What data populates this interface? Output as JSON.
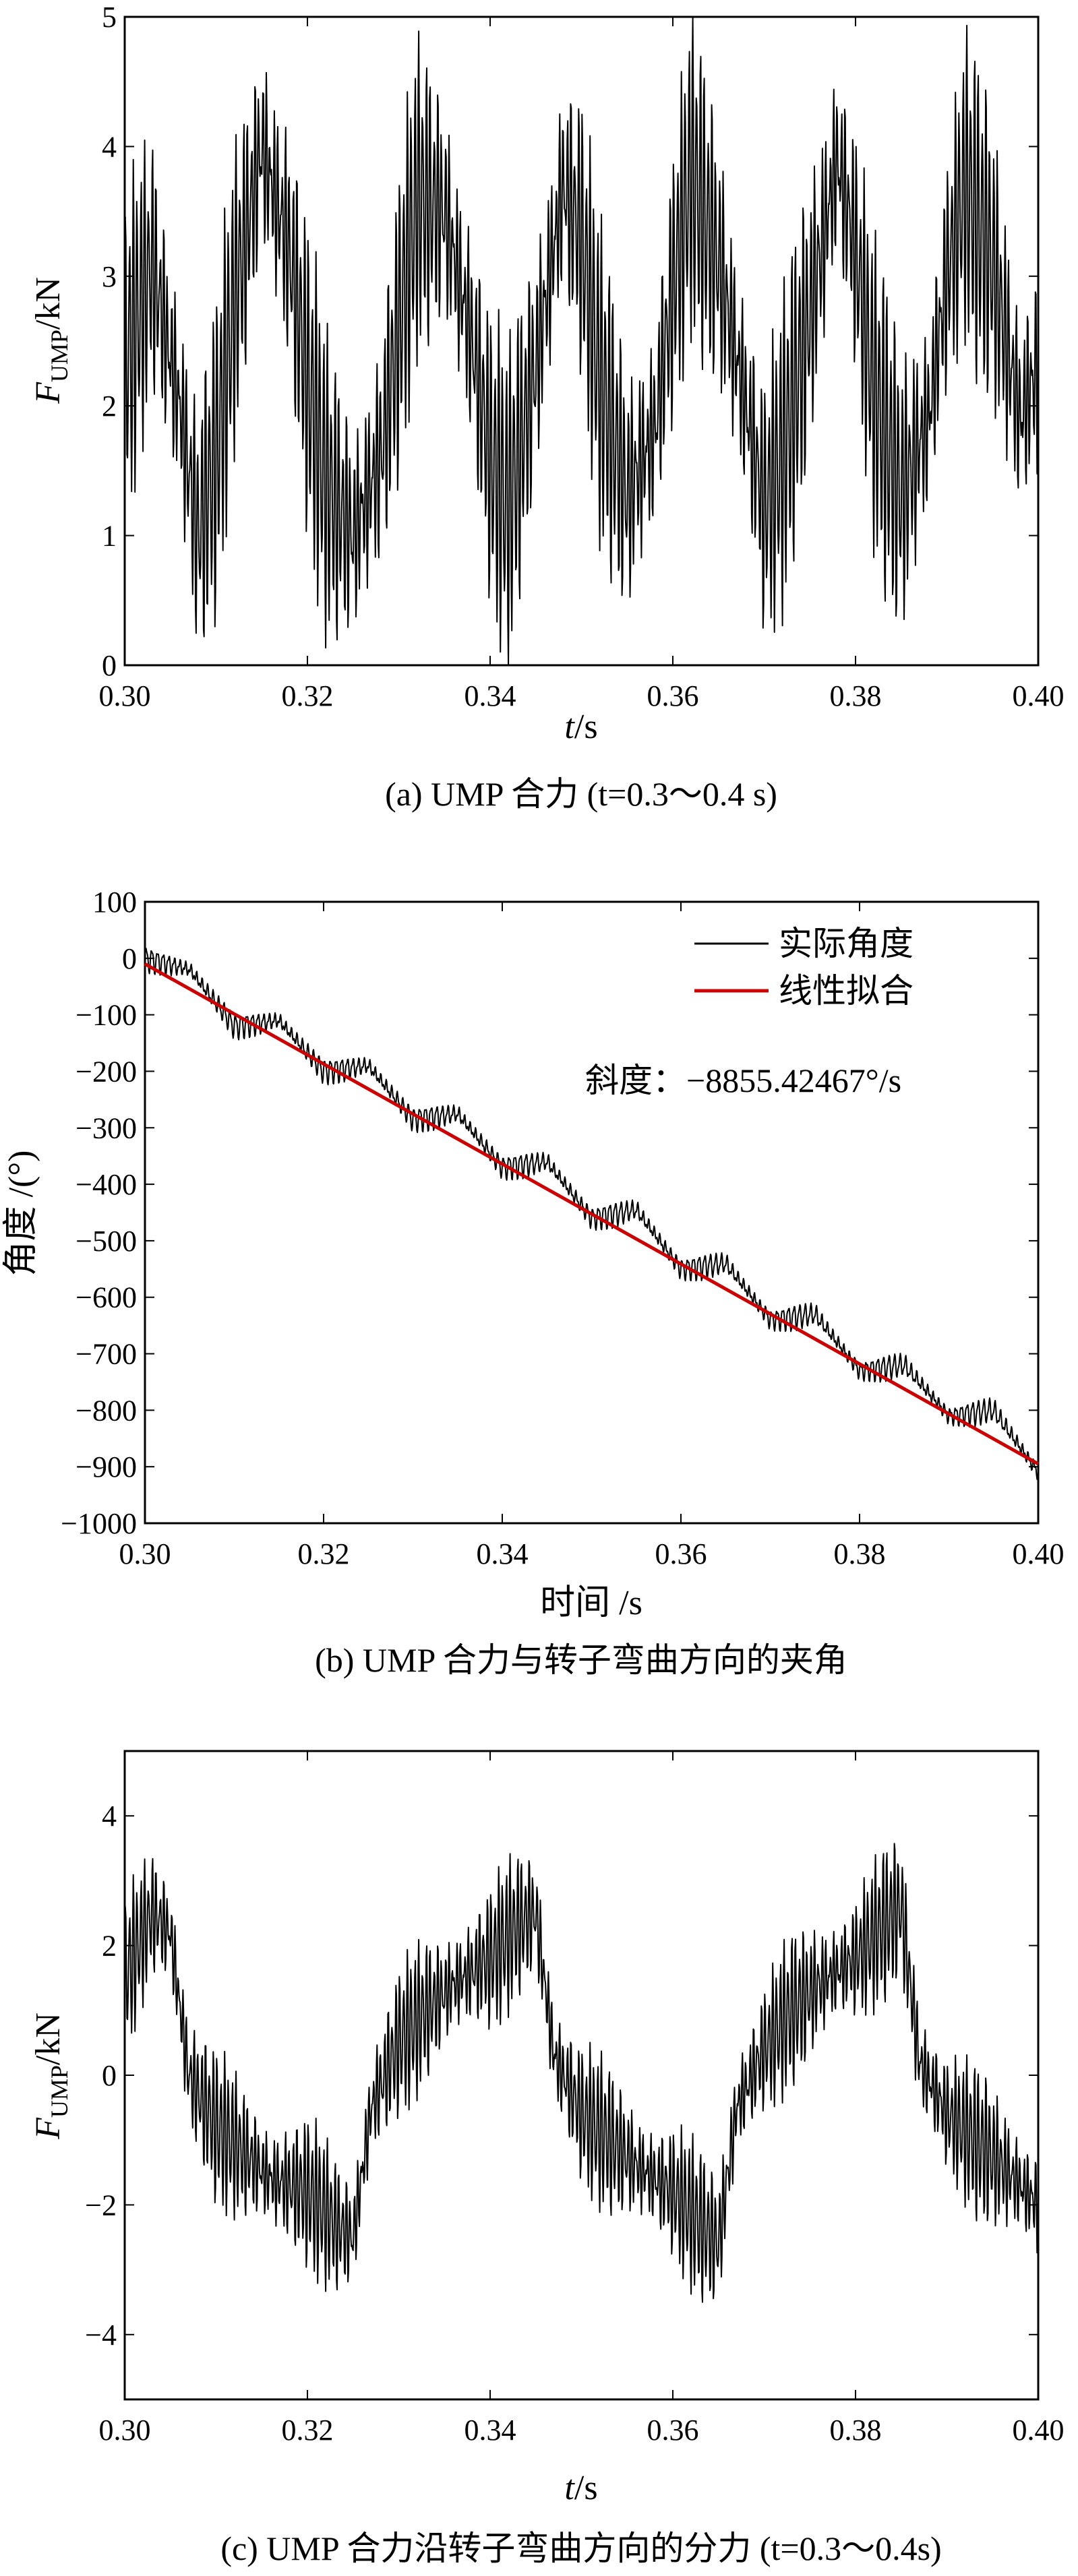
{
  "chart_data": [
    {
      "type": "line",
      "caption": "(a) UMP 合力 (t=0.3～0.4 s)",
      "xlabel": "t/s",
      "ylabel": "F_UMP/kN",
      "ylabel_main": "F",
      "ylabel_sub": "UMP",
      "ylabel_unit": "/kN",
      "xlim": [
        0.3,
        0.4
      ],
      "ylim": [
        0,
        5
      ],
      "x_ticks": [
        "0.30",
        "0.32",
        "0.34",
        "0.36",
        "0.38",
        "0.40"
      ],
      "y_ticks": [
        "0",
        "1",
        "2",
        "3",
        "4",
        "5"
      ],
      "series": [
        {
          "color": "#000000",
          "x": [
            0.3,
            0.303,
            0.306,
            0.308,
            0.31,
            0.312,
            0.315,
            0.318,
            0.32,
            0.322,
            0.325,
            0.328,
            0.33,
            0.332,
            0.335,
            0.338,
            0.34,
            0.342,
            0.345,
            0.348,
            0.35,
            0.352,
            0.355,
            0.358,
            0.36,
            0.362,
            0.365,
            0.368,
            0.37,
            0.372,
            0.375,
            0.378,
            0.38,
            0.382,
            0.385,
            0.388,
            0.39,
            0.392,
            0.395,
            0.398,
            0.4
          ],
          "y": [
            2.3,
            3.1,
            2.0,
            1.0,
            1.6,
            2.8,
            4.0,
            3.2,
            2.2,
            1.4,
            1.0,
            1.6,
            2.6,
            3.6,
            3.5,
            2.5,
            1.6,
            1.2,
            2.3,
            3.7,
            3.3,
            2.2,
            1.3,
            1.8,
            2.9,
            3.8,
            3.1,
            2.0,
            1.2,
            1.6,
            2.7,
            3.9,
            3.2,
            2.1,
            1.3,
            1.9,
            3.0,
            3.7,
            3.1,
            1.9,
            2.3
          ]
        }
      ]
    },
    {
      "type": "line",
      "caption": "(b) UMP 合力与转子弯曲方向的夹角",
      "xlabel": "时间 /s",
      "ylabel": "角度 /(°)",
      "xlim": [
        0.3,
        0.4
      ],
      "ylim": [
        -1000,
        100
      ],
      "x_ticks": [
        "0.30",
        "0.32",
        "0.34",
        "0.36",
        "0.38",
        "0.40"
      ],
      "y_ticks": [
        "100",
        "0",
        "−100",
        "−200",
        "−300",
        "−400",
        "−500",
        "−600",
        "−700",
        "−800",
        "−900",
        "−1000"
      ],
      "annotation": "斜度：−8855.42467°/s",
      "legend_position": "top-right",
      "series": [
        {
          "name": "实际角度",
          "color": "#000000",
          "x": [
            0.3,
            0.305,
            0.31,
            0.315,
            0.32,
            0.325,
            0.33,
            0.335,
            0.34,
            0.345,
            0.35,
            0.355,
            0.36,
            0.365,
            0.37,
            0.375,
            0.38,
            0.385,
            0.39,
            0.395,
            0.4
          ],
          "y": [
            0,
            -20,
            -120,
            -110,
            -200,
            -190,
            -285,
            -275,
            -370,
            -360,
            -460,
            -445,
            -550,
            -540,
            -640,
            -630,
            -730,
            -720,
            -810,
            -800,
            -910
          ]
        },
        {
          "name": "线性拟合",
          "color": "#cc0000",
          "x": [
            0.3,
            0.4
          ],
          "y": [
            -10,
            -895
          ]
        }
      ]
    },
    {
      "type": "line",
      "caption": "(c) UMP 合力沿转子弯曲方向的分力 (t=0.3～0.4s)",
      "xlabel": "t/s",
      "ylabel": "F_UMP/kN",
      "ylabel_main": "F",
      "ylabel_sub": "UMP",
      "ylabel_unit": "/kN",
      "xlim": [
        0.3,
        0.4
      ],
      "ylim": [
        -5,
        5
      ],
      "x_ticks": [
        "0.30",
        "0.32",
        "0.34",
        "0.36",
        "0.38",
        "0.40"
      ],
      "y_ticks": [
        "4",
        "2",
        "0",
        "−2",
        "−4"
      ],
      "series": [
        {
          "color": "#000000",
          "x": [
            0.3,
            0.303,
            0.305,
            0.307,
            0.31,
            0.313,
            0.316,
            0.32,
            0.323,
            0.325,
            0.327,
            0.33,
            0.333,
            0.336,
            0.34,
            0.343,
            0.345,
            0.347,
            0.35,
            0.353,
            0.356,
            0.36,
            0.363,
            0.365,
            0.367,
            0.37,
            0.373,
            0.376,
            0.38,
            0.383,
            0.385,
            0.387,
            0.39,
            0.393,
            0.396,
            0.4
          ],
          "y": [
            1.5,
            2.5,
            2.2,
            0.0,
            -0.8,
            -1.2,
            -1.6,
            -1.8,
            -2.3,
            -2.5,
            -0.5,
            0.5,
            1.0,
            1.4,
            1.8,
            2.3,
            2.5,
            0.3,
            -0.6,
            -1.0,
            -1.4,
            -1.8,
            -2.3,
            -2.6,
            -0.5,
            0.4,
            1.0,
            1.4,
            1.8,
            2.3,
            2.6,
            0.2,
            -0.6,
            -1.0,
            -1.4,
            -2.0
          ]
        }
      ]
    }
  ]
}
